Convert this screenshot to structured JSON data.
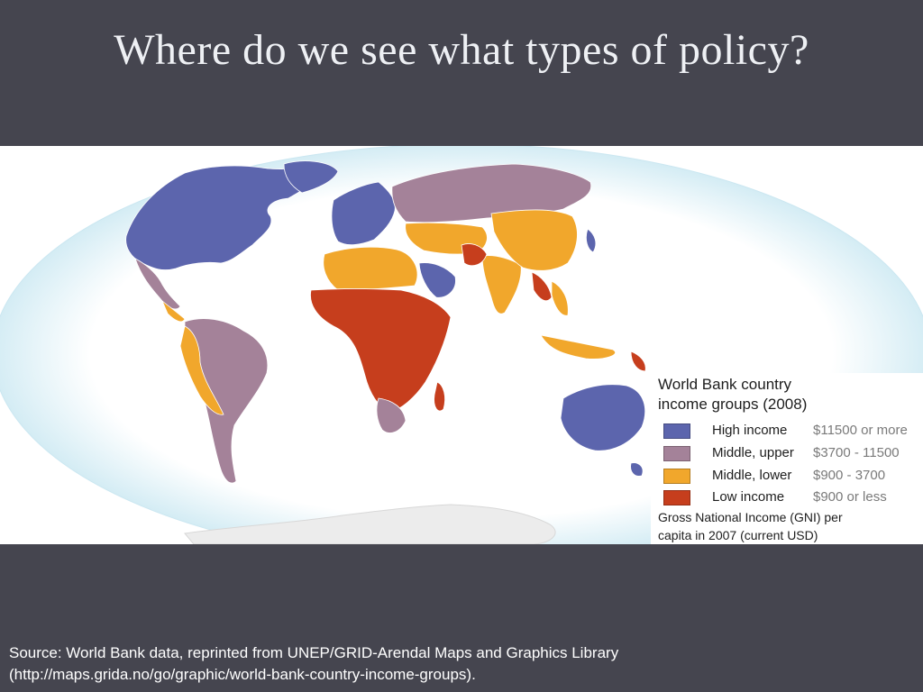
{
  "slide": {
    "title": "Where do we see what types of policy?",
    "source_line1": "Source: World Bank data, reprinted from UNEP/GRID-Arendal Maps and Graphics Library",
    "source_line2": "(http://maps.grida.no/go/graphic/world-bank-country-income-groups)."
  },
  "legend": {
    "title_line1": "World Bank country",
    "title_line2": "income groups (2008)",
    "items": [
      {
        "label": "High income",
        "range": "$11500 or more",
        "color": "#5c65ad"
      },
      {
        "label": "Middle, upper",
        "range": "$3700 - 11500",
        "color": "#a48299"
      },
      {
        "label": "Middle, lower",
        "range": "$900 - 3700",
        "color": "#f1a72c"
      },
      {
        "label": "Low income",
        "range": "$900 or less",
        "color": "#c63e1d"
      }
    ],
    "note_line1": "Gross National Income (GNI) per",
    "note_line2": "capita in 2007 (current USD)"
  },
  "colors": {
    "background": "#45454f",
    "ocean_edge": "#bfe3ef",
    "ocean_center": "#ffffff",
    "antarctica": "#ededed"
  }
}
